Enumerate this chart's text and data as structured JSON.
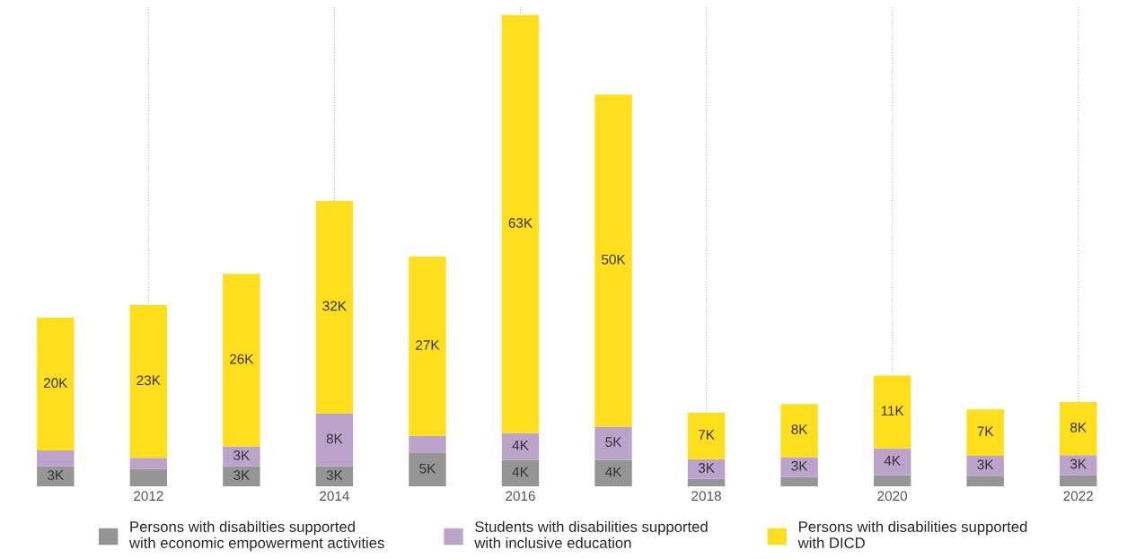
{
  "chart_data": {
    "type": "bar",
    "stacked": true,
    "categories": [
      null,
      "2012",
      null,
      "2014",
      null,
      "2016",
      null,
      "2018",
      null,
      "2020",
      null,
      "2022"
    ],
    "series": [
      {
        "name": "Persons with disabilties supported with economic empowerment activities",
        "color": "#959595",
        "values": [
          3,
          2.6,
          3,
          3,
          5,
          4,
          4,
          1.1,
          1.4,
          1.7,
          1.6,
          1.7
        ],
        "value_labels": [
          "3K",
          null,
          "3K",
          "3K",
          "5K",
          "4K",
          "4K",
          null,
          null,
          null,
          null,
          null
        ]
      },
      {
        "name": "Students with disabilities supported with inclusive education",
        "color": "#bba3cb",
        "values": [
          2.4,
          1.7,
          3,
          8,
          2.6,
          4,
          5,
          3,
          3,
          4,
          3,
          3
        ],
        "value_labels": [
          null,
          null,
          "3K",
          "8K",
          null,
          "4K",
          "5K",
          "3K",
          "3K",
          "4K",
          "3K",
          "3K"
        ]
      },
      {
        "name": "Persons with disabilities supported with DICD",
        "color": "#ffdf1b",
        "values": [
          20,
          23,
          26,
          32,
          27,
          63,
          50,
          7,
          8,
          11,
          7,
          8
        ],
        "value_labels": [
          "20K",
          "23K",
          "26K",
          "32K",
          "27K",
          "63K",
          "50K",
          "7K",
          "8K",
          "11K",
          "7K",
          "8K"
        ]
      }
    ],
    "grid": "x",
    "legend": "bottom"
  }
}
